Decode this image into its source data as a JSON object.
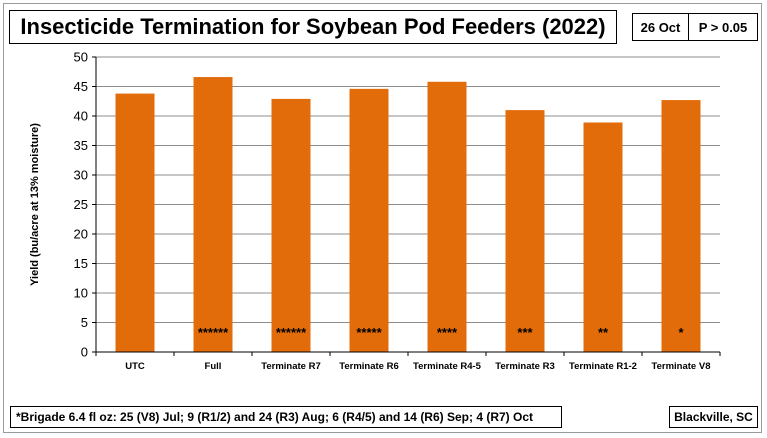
{
  "title": "Insecticide Termination for Soybean Pod Feeders (2022)",
  "date_badge": "26 Oct",
  "p_badge": "P > 0.05",
  "footnote": "*Brigade 6.4 fl oz: 25 (V8) Jul; 9 (R1/2) and 24 (R3) Aug; 6 (R4/5) and 14 (R6) Sep; 4 (R7) Oct",
  "location": "Blackville, SC",
  "bar_color": "#E36C0A",
  "chart_data": {
    "type": "bar",
    "title": "Insecticide Termination for Soybean Pod Feeders (2022)",
    "xlabel": "",
    "ylabel": "Yield (bu/acre at 13% moisture)",
    "ylim": [
      0,
      50
    ],
    "yticks": [
      0,
      5,
      10,
      15,
      20,
      25,
      30,
      35,
      40,
      45,
      50
    ],
    "grid": true,
    "categories": [
      "UTC",
      "Full",
      "Terminate R7",
      "Terminate R6",
      "Terminate R4-5",
      "Terminate R3",
      "Terminate R1-2",
      "Terminate V8"
    ],
    "values": [
      43.8,
      46.6,
      42.9,
      44.6,
      45.8,
      41.0,
      38.9,
      42.7
    ],
    "annotations": [
      "",
      "******",
      "******",
      "*****",
      "****",
      "***",
      "**",
      "*"
    ]
  }
}
